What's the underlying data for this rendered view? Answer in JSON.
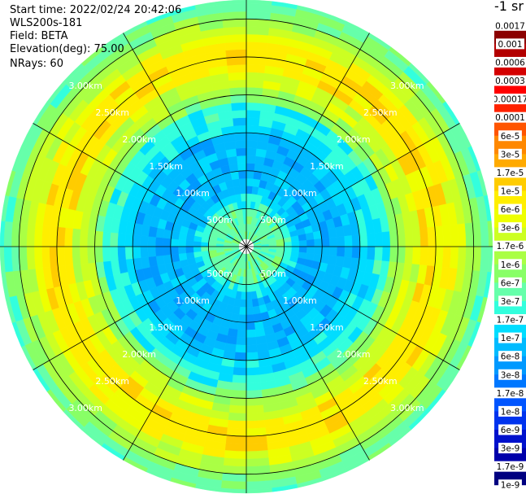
{
  "info": {
    "start_time": "Start time: 2022/02/24 20:42:06",
    "instrument": "WLS200s-181",
    "field": "Field: BETA",
    "elevation": "Elevation(deg): 75.00",
    "nrays": "NRays: 60"
  },
  "colorbar": {
    "unit_label": "-1 sr",
    "colors": [
      "#8b0000",
      "#b30000",
      "#d40000",
      "#ff0000",
      "#ff2200",
      "#ff5500",
      "#ff8800",
      "#ffaa00",
      "#ffcc00",
      "#ffee00",
      "#eeff00",
      "#ccff22",
      "#aaff44",
      "#88ff66",
      "#66ffaa",
      "#33ffdd",
      "#00ddff",
      "#00bbff",
      "#0099ff",
      "#0077ff",
      "#0055ff",
      "#0033ee",
      "#0011cc",
      "#0000aa",
      "#000080"
    ],
    "labels": [
      "0.0017",
      "0.001",
      "0.0006",
      "0.0003",
      "0.00017",
      "0.0001",
      "6e-5",
      "3e-5",
      "1.7e-5",
      "1e-5",
      "6e-6",
      "3e-6",
      "1.7e-6",
      "1e-6",
      "6e-7",
      "3e-7",
      "1.7e-7",
      "1e-7",
      "6e-8",
      "3e-8",
      "1.7e-8",
      "1e-8",
      "6e-9",
      "3e-9",
      "1.7e-9",
      "1e-9"
    ]
  },
  "chart_data": {
    "type": "heatmap",
    "projection": "polar",
    "field": "BETA",
    "nrays": 60,
    "range_unit": "km",
    "max_range_m": 3250,
    "range_rings_m": [
      500,
      1000,
      1500,
      2000,
      2500,
      3000
    ],
    "ring_labels": [
      "500m",
      "1.00km",
      "1.50km",
      "2.00km",
      "2.50km",
      "3.00km"
    ],
    "spokes_deg": [
      0,
      30,
      60,
      90,
      120,
      150,
      180,
      210,
      240,
      270,
      300,
      330
    ],
    "gate_size_m": 100,
    "first_gate_m": 100,
    "radial_profile": [
      {
        "range_m": [
          100,
          500
        ],
        "color_index": 14
      },
      {
        "range_m": [
          500,
          600
        ],
        "color_index": 15
      },
      {
        "range_m": [
          600,
          700
        ],
        "color_index": 16
      },
      {
        "range_m": [
          700,
          1500
        ],
        "color_index": 17
      },
      {
        "range_m": [
          1500,
          1700
        ],
        "color_index": 16
      },
      {
        "range_m": [
          1700,
          1900
        ],
        "color_index": 15
      },
      {
        "range_m": [
          1900,
          2000
        ],
        "color_index": 13
      },
      {
        "range_m": [
          2000,
          2100
        ],
        "color_index": 12
      },
      {
        "range_m": [
          2100,
          2300
        ],
        "color_index": 11
      },
      {
        "range_m": [
          2300,
          2700
        ],
        "color_index": 9
      },
      {
        "range_m": [
          2700,
          2800
        ],
        "color_index": 10
      },
      {
        "range_m": [
          2800,
          2900
        ],
        "color_index": 11
      },
      {
        "range_m": [
          2900,
          3000
        ],
        "color_index": 12
      },
      {
        "range_m": [
          3000,
          3100
        ],
        "color_index": 13
      },
      {
        "range_m": [
          3100,
          3250
        ],
        "color_index": 14
      }
    ]
  }
}
